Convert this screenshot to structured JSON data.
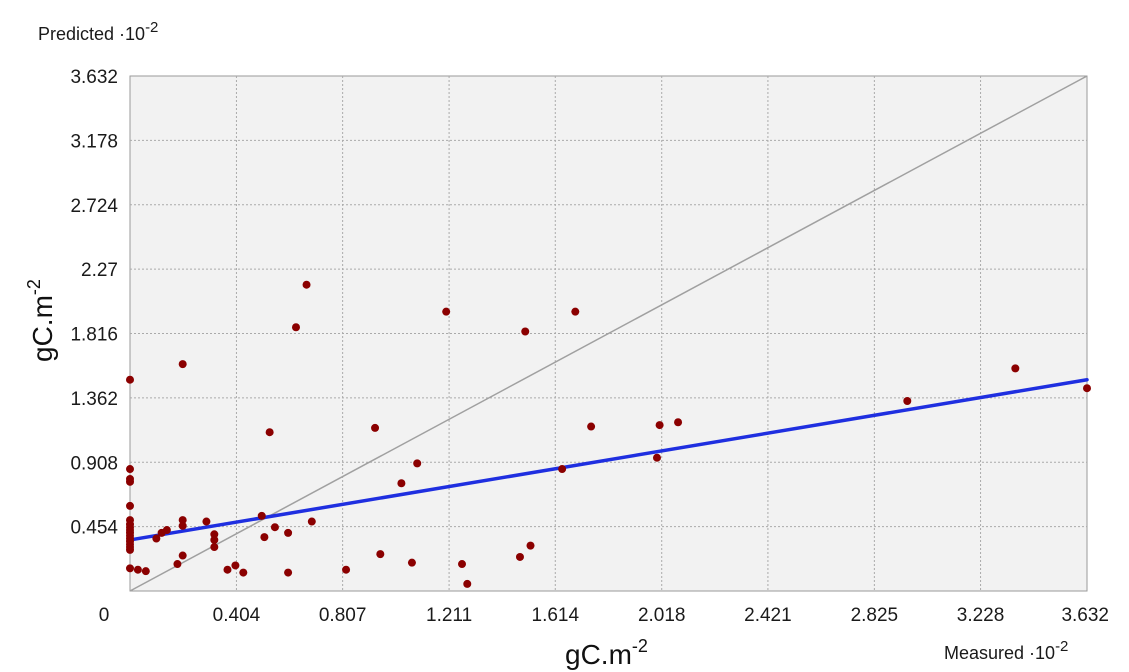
{
  "chart_data": {
    "type": "scatter",
    "title": "",
    "xlabel": "gC.m",
    "xlabel_sup": "-2",
    "ylabel": "gC.m",
    "ylabel_sup": "-2",
    "x_corner_label": "Measured ·10",
    "x_corner_sup": "-2",
    "y_corner_label": "Predicted ·10",
    "y_corner_sup": "-2",
    "xlim": [
      0,
      3.632
    ],
    "ylim": [
      0,
      3.632
    ],
    "x_ticks": [
      0,
      0.404,
      0.807,
      1.211,
      1.614,
      2.018,
      2.421,
      2.825,
      3.228,
      3.632
    ],
    "x_tick_labels": [
      "0",
      "0.404",
      "0.807",
      "1.211",
      "1.614",
      "2.018",
      "2.421",
      "2.825",
      "3.228",
      "3.632"
    ],
    "y_ticks": [
      0,
      0.454,
      0.908,
      1.362,
      1.816,
      2.27,
      2.724,
      3.178,
      3.632
    ],
    "y_tick_labels": [
      "0",
      "0.454",
      "0.908",
      "1.362",
      "1.816",
      "2.27",
      "2.724",
      "3.178",
      "3.632"
    ],
    "grid": true,
    "colors": {
      "points": "#8b0000",
      "fit_line": "#1f2fe0",
      "identity_line": "#a0a0a0",
      "grid": "#aaaaaa",
      "plot_background": "#f2f2f2"
    },
    "series": [
      {
        "points": [
          [
            0.0,
            1.49
          ],
          [
            0.0,
            0.86
          ],
          [
            0.0,
            0.79
          ],
          [
            0.0,
            0.77
          ],
          [
            0.0,
            0.6
          ],
          [
            0.0,
            0.5
          ],
          [
            0.0,
            0.47
          ],
          [
            0.0,
            0.45
          ],
          [
            0.0,
            0.43
          ],
          [
            0.0,
            0.41
          ],
          [
            0.0,
            0.39
          ],
          [
            0.0,
            0.37
          ],
          [
            0.0,
            0.35
          ],
          [
            0.0,
            0.33
          ],
          [
            0.0,
            0.31
          ],
          [
            0.0,
            0.29
          ],
          [
            0.0,
            0.16
          ],
          [
            0.03,
            0.15
          ],
          [
            0.06,
            0.14
          ],
          [
            0.1,
            0.37
          ],
          [
            0.12,
            0.41
          ],
          [
            0.14,
            0.43
          ],
          [
            0.2,
            1.6
          ],
          [
            0.2,
            0.5
          ],
          [
            0.2,
            0.46
          ],
          [
            0.2,
            0.25
          ],
          [
            0.18,
            0.19
          ],
          [
            0.29,
            0.49
          ],
          [
            0.32,
            0.4
          ],
          [
            0.32,
            0.36
          ],
          [
            0.32,
            0.31
          ],
          [
            0.37,
            0.15
          ],
          [
            0.4,
            0.18
          ],
          [
            0.43,
            0.13
          ],
          [
            0.5,
            0.53
          ],
          [
            0.51,
            0.38
          ],
          [
            0.53,
            1.12
          ],
          [
            0.55,
            0.45
          ],
          [
            0.6,
            0.41
          ],
          [
            0.6,
            0.13
          ],
          [
            0.63,
            1.86
          ],
          [
            0.67,
            2.16
          ],
          [
            0.69,
            0.49
          ],
          [
            0.82,
            0.15
          ],
          [
            0.93,
            1.15
          ],
          [
            0.95,
            0.26
          ],
          [
            1.03,
            0.76
          ],
          [
            1.07,
            0.2
          ],
          [
            1.09,
            0.9
          ],
          [
            1.2,
            1.97
          ],
          [
            1.26,
            0.19
          ],
          [
            1.28,
            0.05
          ],
          [
            1.48,
            0.24
          ],
          [
            1.5,
            1.83
          ],
          [
            1.52,
            0.32
          ],
          [
            1.64,
            0.86
          ],
          [
            1.69,
            1.97
          ],
          [
            1.75,
            1.16
          ],
          [
            2.0,
            0.94
          ],
          [
            2.01,
            1.17
          ],
          [
            2.08,
            1.19
          ],
          [
            2.95,
            1.34
          ],
          [
            3.36,
            1.57
          ],
          [
            3.632,
            1.43
          ]
        ]
      }
    ],
    "fit_line": [
      [
        0,
        0.36
      ],
      [
        3.632,
        1.49
      ]
    ],
    "identity_line": [
      [
        0,
        0
      ],
      [
        3.632,
        3.632
      ]
    ]
  }
}
